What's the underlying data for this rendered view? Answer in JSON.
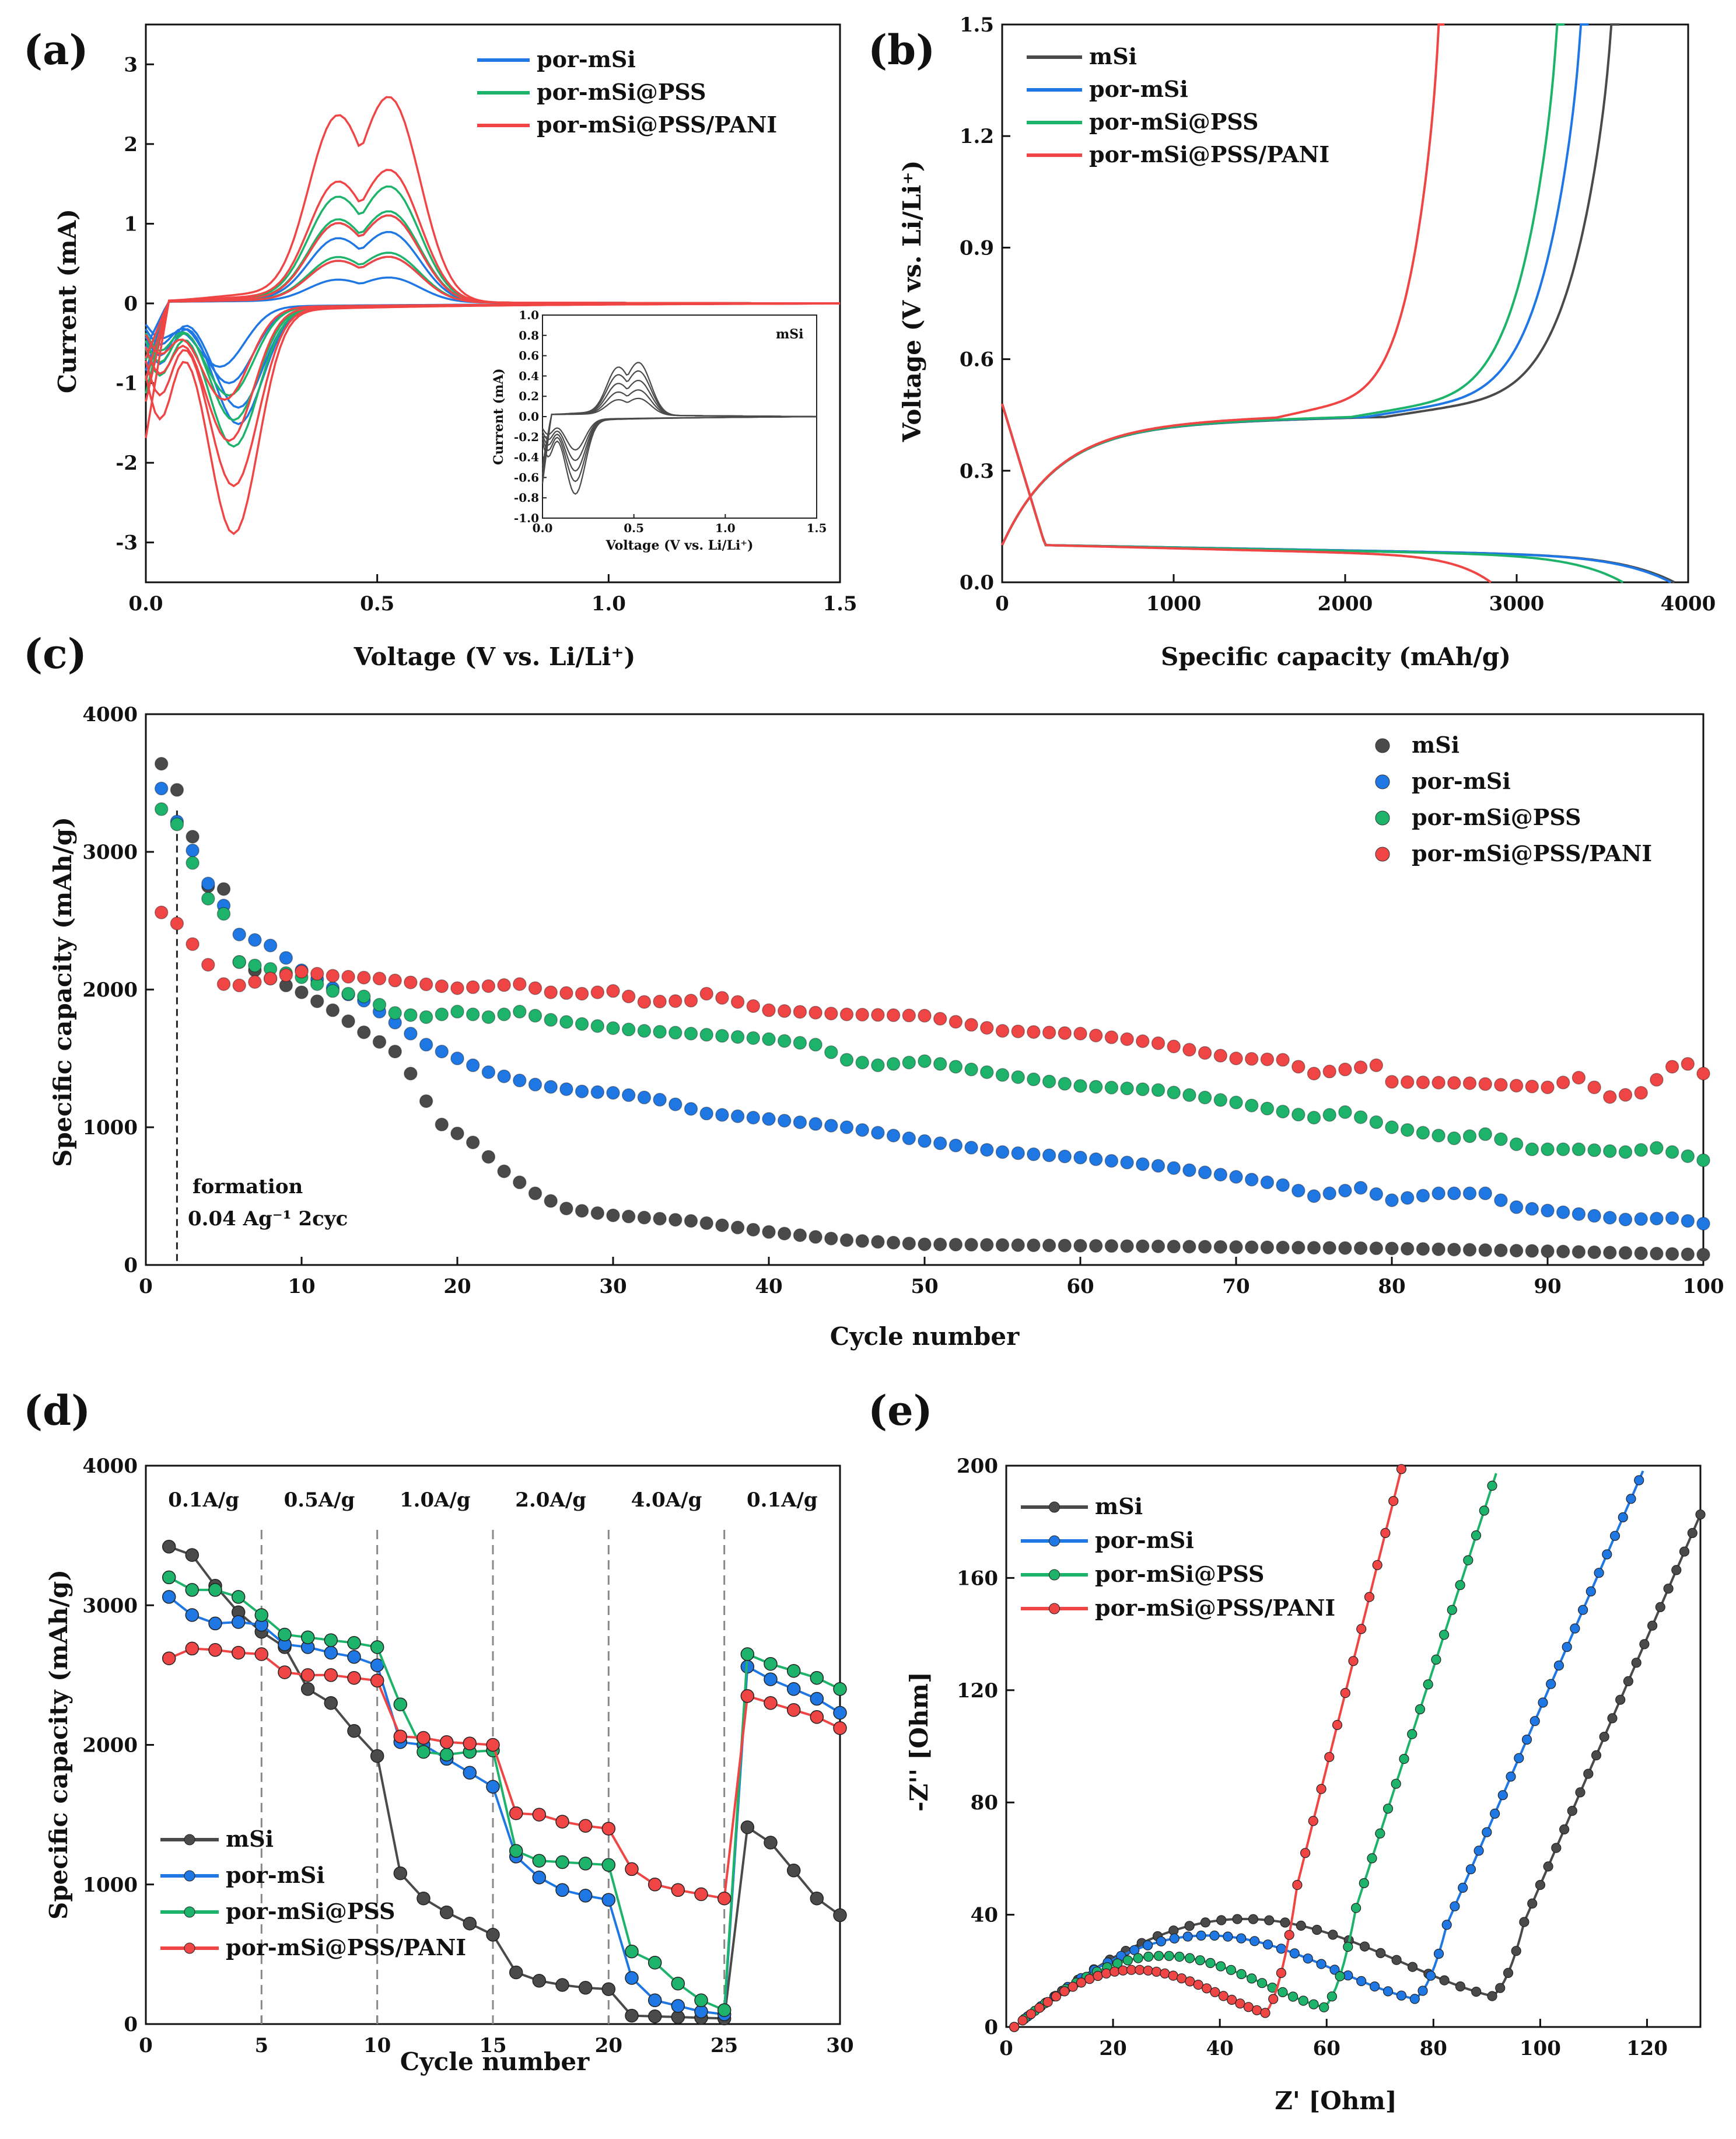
{
  "colors": {
    "mSi": "#4a4a4a",
    "por_mSi": "#1f77e4",
    "por_mSi_PSS": "#1db36b",
    "por_mSi_PSS_PANI": "#f04545"
  },
  "chart_data": [
    {
      "panel": "(a)",
      "type": "line",
      "xlabel": "Voltage (V vs. Li/Li⁺)",
      "ylabel": "Current (mA)",
      "xlim": [
        0.0,
        1.5
      ],
      "ylim": [
        -3.5,
        3.5
      ],
      "xticks": [
        "0.0",
        "0.5",
        "1.0",
        "1.5"
      ],
      "yticks": [
        "-3",
        "-2",
        "-1",
        "0",
        "1",
        "2",
        "3"
      ],
      "legend": [
        "por-mSi",
        "por-mSi@PSS",
        "por-mSi@PSS/PANI"
      ],
      "series": [
        {
          "name": "por-mSi",
          "color": "#1f77e4",
          "curves": [
            {
              "peak": 1.05,
              "cath": -1.45,
              "cath_v": 0.2
            },
            {
              "peak": 0.85,
              "cath": -1.25,
              "cath_v": 0.2
            },
            {
              "peak": 0.55,
              "cath": -0.95,
              "cath_v": 0.18
            },
            {
              "peak": 0.3,
              "cath": -0.75,
              "cath_v": 0.16
            }
          ]
        },
        {
          "name": "por-mSi@PSS",
          "color": "#1db36b",
          "curves": [
            {
              "peak": 1.4,
              "cath": -1.72,
              "cath_v": 0.19
            },
            {
              "peak": 1.1,
              "cath": -1.4,
              "cath_v": 0.19
            },
            {
              "peak": 0.6,
              "cath": -1.1,
              "cath_v": 0.18
            }
          ]
        },
        {
          "name": "por-mSi@PSS/PANI",
          "color": "#f04545",
          "curves": [
            {
              "peak": 2.48,
              "cath": -2.78,
              "cath_v": 0.19
            },
            {
              "peak": 1.6,
              "cath": -2.2,
              "cath_v": 0.19
            },
            {
              "peak": 1.05,
              "cath": -1.65,
              "cath_v": 0.18
            },
            {
              "peak": 0.55,
              "cath": -1.15,
              "cath_v": 0.17
            }
          ]
        }
      ],
      "inset": {
        "title": "mSi",
        "xlabel": "Voltage (V vs. Li/Li⁺)",
        "ylabel": "Current (mA)",
        "xlim": [
          0.0,
          1.5
        ],
        "ylim": [
          -1.0,
          1.0
        ],
        "xticks": [
          "0.0",
          "0.5",
          "1.0",
          "1.5"
        ],
        "yticks": [
          "-1.0",
          "-0.8",
          "-0.6",
          "-0.4",
          "-0.2",
          "0.0",
          "0.2",
          "0.4",
          "0.6",
          "0.8",
          "1.0"
        ],
        "curves": [
          {
            "peak": 0.5,
            "cath": -0.72
          },
          {
            "peak": 0.42,
            "cath": -0.6
          },
          {
            "peak": 0.33,
            "cath": -0.5
          },
          {
            "peak": 0.24,
            "cath": -0.4
          },
          {
            "peak": 0.16,
            "cath": -0.3
          }
        ]
      }
    },
    {
      "panel": "(b)",
      "type": "line",
      "xlabel": "Specific capacity (mAh/g)",
      "ylabel": "Voltage (V vs. Li/Li⁺)",
      "xlim": [
        0,
        4000
      ],
      "ylim": [
        0.0,
        1.5
      ],
      "xticks": [
        "0",
        "1000",
        "2000",
        "3000",
        "4000"
      ],
      "yticks": [
        "0.0",
        "0.3",
        "0.6",
        "0.9",
        "1.2",
        "1.5"
      ],
      "legend": [
        "mSi",
        "por-mSi",
        "por-mSi@PSS",
        "por-mSi@PSS/PANI"
      ],
      "series": [
        {
          "name": "mSi",
          "color": "#4a4a4a",
          "charge_end": 3600,
          "discharge_end": 3920
        },
        {
          "name": "por-mSi",
          "color": "#1f77e4",
          "charge_end": 3420,
          "discharge_end": 3900
        },
        {
          "name": "por-mSi@PSS",
          "color": "#1db36b",
          "charge_end": 3280,
          "discharge_end": 3620
        },
        {
          "name": "por-mSi@PSS/PANI",
          "color": "#f04545",
          "charge_end": 2580,
          "discharge_end": 2850
        }
      ]
    },
    {
      "panel": "(c)",
      "type": "scatter",
      "xlabel": "Cycle number",
      "ylabel": "Specific capacity (mAh/g)",
      "xlim": [
        0,
        100
      ],
      "ylim": [
        0,
        4000
      ],
      "xticks": [
        "0",
        "10",
        "20",
        "30",
        "40",
        "50",
        "60",
        "70",
        "80",
        "90",
        "100"
      ],
      "yticks": [
        "0",
        "1000",
        "2000",
        "3000",
        "4000"
      ],
      "legend": [
        "mSi",
        "por-mSi",
        "por-mSi@PSS",
        "por-mSi@PSS/PANI"
      ],
      "annotation": {
        "line1": "formation",
        "line2": "0.04 Ag⁻¹ 2cyc",
        "x": 2
      },
      "series": [
        {
          "name": "mSi",
          "color": "#4a4a4a",
          "keypoints": [
            [
              1,
              3640
            ],
            [
              2,
              3450
            ],
            [
              3,
              3110
            ],
            [
              4,
              2750
            ],
            [
              5,
              2730
            ],
            [
              6,
              2200
            ],
            [
              8,
              2080
            ],
            [
              10,
              1980
            ],
            [
              12,
              1850
            ],
            [
              14,
              1690
            ],
            [
              16,
              1550
            ],
            [
              17,
              1390
            ],
            [
              18,
              1190
            ],
            [
              19,
              1020
            ],
            [
              21,
              890
            ],
            [
              23,
              680
            ],
            [
              25,
              520
            ],
            [
              27,
              410
            ],
            [
              30,
              360
            ],
            [
              35,
              320
            ],
            [
              40,
              240
            ],
            [
              45,
              180
            ],
            [
              50,
              150
            ],
            [
              60,
              140
            ],
            [
              70,
              130
            ],
            [
              80,
              120
            ],
            [
              90,
              100
            ],
            [
              100,
              75
            ]
          ]
        },
        {
          "name": "por-mSi",
          "color": "#1f77e4",
          "keypoints": [
            [
              1,
              3460
            ],
            [
              2,
              3220
            ],
            [
              3,
              3010
            ],
            [
              4,
              2770
            ],
            [
              5,
              2610
            ],
            [
              6,
              2400
            ],
            [
              8,
              2320
            ],
            [
              10,
              2140
            ],
            [
              12,
              2010
            ],
            [
              14,
              1920
            ],
            [
              16,
              1760
            ],
            [
              18,
              1600
            ],
            [
              20,
              1500
            ],
            [
              22,
              1400
            ],
            [
              25,
              1310
            ],
            [
              28,
              1260
            ],
            [
              30,
              1250
            ],
            [
              33,
              1200
            ],
            [
              36,
              1100
            ],
            [
              40,
              1060
            ],
            [
              45,
              1000
            ],
            [
              50,
              900
            ],
            [
              55,
              820
            ],
            [
              60,
              780
            ],
            [
              65,
              720
            ],
            [
              70,
              640
            ],
            [
              73,
              580
            ],
            [
              75,
              500
            ],
            [
              78,
              560
            ],
            [
              80,
              470
            ],
            [
              83,
              520
            ],
            [
              86,
              520
            ],
            [
              88,
              420
            ],
            [
              92,
              370
            ],
            [
              95,
              330
            ],
            [
              98,
              340
            ],
            [
              100,
              300
            ]
          ]
        },
        {
          "name": "por-mSi@PSS",
          "color": "#1db36b",
          "keypoints": [
            [
              1,
              3310
            ],
            [
              2,
              3200
            ],
            [
              3,
              2920
            ],
            [
              4,
              2660
            ],
            [
              5,
              2550
            ],
            [
              6,
              2200
            ],
            [
              8,
              2150
            ],
            [
              10,
              2090
            ],
            [
              12,
              1990
            ],
            [
              14,
              1950
            ],
            [
              16,
              1830
            ],
            [
              18,
              1800
            ],
            [
              20,
              1840
            ],
            [
              22,
              1800
            ],
            [
              24,
              1840
            ],
            [
              26,
              1780
            ],
            [
              28,
              1750
            ],
            [
              30,
              1720
            ],
            [
              32,
              1700
            ],
            [
              35,
              1680
            ],
            [
              40,
              1640
            ],
            [
              43,
              1600
            ],
            [
              45,
              1490
            ],
            [
              47,
              1450
            ],
            [
              50,
              1480
            ],
            [
              55,
              1380
            ],
            [
              60,
              1300
            ],
            [
              65,
              1270
            ],
            [
              70,
              1180
            ],
            [
              75,
              1070
            ],
            [
              77,
              1110
            ],
            [
              80,
              1000
            ],
            [
              84,
              920
            ],
            [
              86,
              950
            ],
            [
              89,
              840
            ],
            [
              92,
              840
            ],
            [
              95,
              820
            ],
            [
              97,
              850
            ],
            [
              100,
              760
            ]
          ]
        },
        {
          "name": "por-mSi@PSS/PANI",
          "color": "#f04545",
          "keypoints": [
            [
              1,
              2560
            ],
            [
              2,
              2480
            ],
            [
              3,
              2330
            ],
            [
              4,
              2180
            ],
            [
              5,
              2040
            ],
            [
              6,
              2030
            ],
            [
              8,
              2080
            ],
            [
              10,
              2130
            ],
            [
              12,
              2100
            ],
            [
              15,
              2080
            ],
            [
              20,
              2010
            ],
            [
              24,
              2040
            ],
            [
              26,
              1980
            ],
            [
              28,
              1970
            ],
            [
              30,
              1990
            ],
            [
              32,
              1910
            ],
            [
              35,
              1920
            ],
            [
              36,
              1970
            ],
            [
              40,
              1850
            ],
            [
              45,
              1820
            ],
            [
              50,
              1810
            ],
            [
              55,
              1700
            ],
            [
              60,
              1680
            ],
            [
              63,
              1640
            ],
            [
              65,
              1610
            ],
            [
              68,
              1540
            ],
            [
              70,
              1500
            ],
            [
              73,
              1490
            ],
            [
              75,
              1390
            ],
            [
              77,
              1420
            ],
            [
              79,
              1450
            ],
            [
              80,
              1330
            ],
            [
              85,
              1320
            ],
            [
              90,
              1290
            ],
            [
              92,
              1360
            ],
            [
              94,
              1220
            ],
            [
              96,
              1250
            ],
            [
              98,
              1440
            ],
            [
              99,
              1460
            ],
            [
              100,
              1390
            ]
          ]
        }
      ]
    },
    {
      "panel": "(d)",
      "type": "line",
      "xlabel": "Cycle number",
      "ylabel": "Specific capacity (mAh/g)",
      "xlim": [
        0,
        30
      ],
      "ylim": [
        0,
        4000
      ],
      "xticks": [
        "0",
        "5",
        "10",
        "15",
        "20",
        "25",
        "30"
      ],
      "yticks": [
        "0",
        "1000",
        "2000",
        "3000",
        "4000"
      ],
      "legend": [
        "mSi",
        "por-mSi",
        "por-mSi@PSS",
        "por-mSi@PSS/PANI"
      ],
      "rate_labels": [
        "0.1A/g",
        "0.5A/g",
        "1.0A/g",
        "2.0A/g",
        "4.0A/g",
        "0.1A/g"
      ],
      "dividers": [
        5,
        10,
        15,
        20,
        25
      ],
      "series": [
        {
          "name": "mSi",
          "color": "#4a4a4a",
          "values": [
            3420,
            3360,
            3140,
            2950,
            2810,
            2700,
            2400,
            2300,
            2100,
            1920,
            1080,
            900,
            800,
            720,
            640,
            370,
            310,
            280,
            260,
            250,
            60,
            55,
            50,
            45,
            40,
            1410,
            1300,
            1100,
            900,
            780
          ]
        },
        {
          "name": "por-mSi",
          "color": "#1f77e4",
          "values": [
            3060,
            2930,
            2870,
            2880,
            2860,
            2720,
            2700,
            2660,
            2630,
            2570,
            2020,
            2000,
            1900,
            1800,
            1700,
            1200,
            1050,
            960,
            920,
            890,
            330,
            170,
            130,
            90,
            70,
            2560,
            2470,
            2400,
            2330,
            2230
          ]
        },
        {
          "name": "por-mSi@PSS",
          "color": "#1db36b",
          "values": [
            3200,
            3110,
            3110,
            3060,
            2930,
            2790,
            2770,
            2750,
            2730,
            2700,
            2290,
            1950,
            1930,
            1950,
            1960,
            1240,
            1170,
            1160,
            1150,
            1140,
            520,
            440,
            290,
            170,
            100,
            2650,
            2580,
            2530,
            2480,
            2400
          ]
        },
        {
          "name": "por-mSi@PSS/PANI",
          "color": "#f04545",
          "values": [
            2620,
            2690,
            2680,
            2660,
            2650,
            2520,
            2500,
            2500,
            2480,
            2460,
            2060,
            2050,
            2020,
            2010,
            2000,
            1510,
            1500,
            1450,
            1420,
            1400,
            1110,
            1000,
            960,
            930,
            900,
            2350,
            2300,
            2250,
            2200,
            2120
          ]
        }
      ]
    },
    {
      "panel": "(e)",
      "type": "line",
      "xlabel": "Z' [Ohm]",
      "ylabel": "-Z'' [Ohm]",
      "xlim": [
        0,
        130
      ],
      "ylim": [
        0,
        200
      ],
      "xticks": [
        "0",
        "20",
        "40",
        "60",
        "80",
        "100",
        "120"
      ],
      "yticks": [
        "0",
        "40",
        "80",
        "120",
        "160",
        "200"
      ],
      "legend": [
        "mSi",
        "por-mSi",
        "por-mSi@PSS",
        "por-mSi@PSS/PANI"
      ],
      "series": [
        {
          "name": "mSi",
          "color": "#4a4a4a",
          "r0": 1.5,
          "rmin": 91,
          "arc_h": 42.5,
          "min_z": 11,
          "slope": 4.4
        },
        {
          "name": "por-mSi",
          "color": "#1f77e4",
          "r0": 1.5,
          "rmin": 76.5,
          "arc_h": 36,
          "min_z": 10,
          "slope": 4.4
        },
        {
          "name": "por-mSi@PSS",
          "color": "#1db36b",
          "r0": 1.5,
          "rmin": 59.5,
          "arc_h": 28,
          "min_z": 7,
          "slope": 5.9
        },
        {
          "name": "por-mSi@PSS/PANI",
          "color": "#f04545",
          "r0": 1.5,
          "rmin": 48.5,
          "arc_h": 22.5,
          "min_z": 5,
          "slope": 7.6
        }
      ]
    }
  ]
}
